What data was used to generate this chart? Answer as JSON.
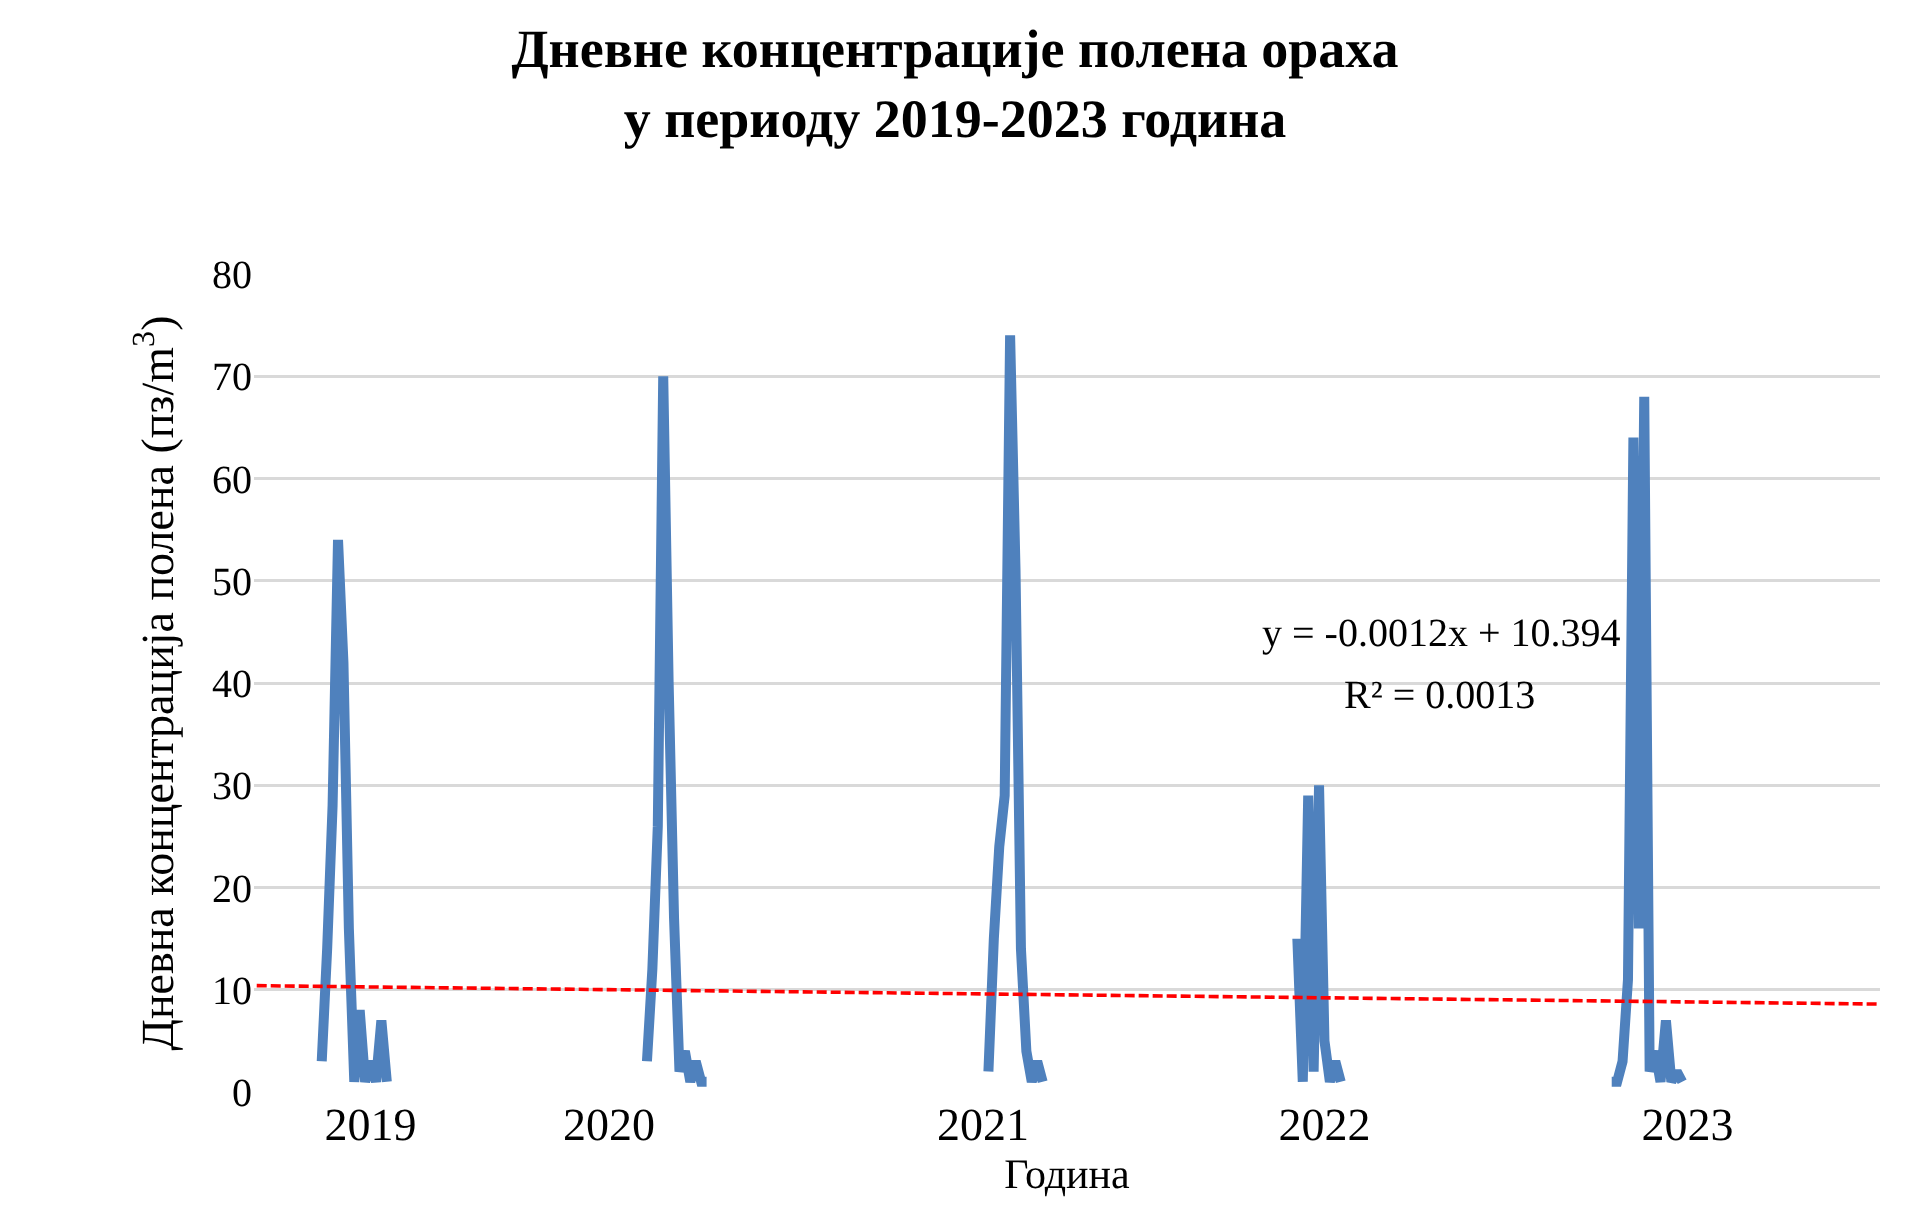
{
  "chart_data": {
    "type": "line",
    "title": "Дневне концентрације полена ораха\nу периоду 2019-2023 година",
    "xlabel": "Година",
    "ylabel": "Дневна концентрација полена (пз/m$^{3}$)",
    "categories": [
      null,
      null,
      null,
      null,
      null,
      null,
      null,
      null,
      null,
      null,
      null,
      null,
      null,
      null,
      null,
      null,
      null,
      null,
      null,
      null,
      null,
      "2019",
      null,
      null,
      null,
      null,
      null,
      null,
      null,
      null,
      null,
      null,
      null,
      null,
      null,
      null,
      null,
      null,
      null,
      null,
      null,
      null,
      null,
      null,
      null,
      null,
      null,
      null,
      null,
      null,
      null,
      null,
      null,
      null,
      null,
      null,
      null,
      null,
      null,
      null,
      null,
      null,
      null,
      null,
      null,
      "2020",
      null,
      null,
      null,
      null,
      null,
      null,
      null,
      null,
      null,
      null,
      null,
      null,
      null,
      null,
      null,
      null,
      null,
      null,
      null,
      null,
      null,
      null,
      null,
      null,
      null,
      null,
      null,
      null,
      null,
      null,
      null,
      null,
      null,
      null,
      null,
      null,
      null,
      null,
      null,
      null,
      null,
      null,
      null,
      null,
      null,
      null,
      null,
      null,
      null,
      null,
      null,
      null,
      null,
      null,
      null,
      null,
      null,
      null,
      null,
      null,
      null,
      null,
      null,
      null,
      null,
      null,
      null,
      null,
      "2021",
      null,
      null,
      null,
      null,
      null,
      null,
      null,
      null,
      null,
      null,
      null,
      null,
      null,
      null,
      null,
      null,
      null,
      null,
      null,
      null,
      null,
      null,
      null,
      null,
      null,
      null,
      null,
      null,
      null,
      null,
      null,
      null,
      null,
      null,
      null,
      null,
      null,
      null,
      null,
      null,
      null,
      null,
      null,
      null,
      null,
      null,
      null,
      null,
      null,
      null,
      null,
      null,
      null,
      null,
      null,
      null,
      null,
      null,
      null,
      null,
      null,
      null,
      "2022",
      null,
      null,
      null,
      null,
      null,
      null,
      null,
      null,
      null,
      null,
      null,
      null,
      null,
      null,
      null,
      null,
      null,
      null,
      null,
      null,
      null,
      null,
      null,
      null,
      null,
      null,
      null,
      null,
      null,
      null,
      null,
      null,
      null,
      null,
      null,
      null,
      null,
      null,
      null,
      null,
      null,
      null,
      null,
      null,
      null,
      null,
      null,
      null,
      null,
      null,
      null,
      null,
      null,
      null,
      null,
      null,
      null,
      null,
      null,
      null,
      null,
      null,
      null,
      null,
      null,
      null,
      "2023",
      null,
      null,
      null,
      null,
      null,
      null,
      null,
      null,
      null,
      null,
      null,
      null,
      null,
      null,
      null,
      null,
      null,
      null,
      null,
      null,
      null,
      null,
      null,
      null,
      null,
      null,
      null,
      null,
      null,
      null,
      null,
      null,
      null,
      null,
      null
    ],
    "series": [
      {
        "color": "#4f81bd",
        "line_style": "solid",
        "values": [
          null,
          null,
          null,
          null,
          null,
          null,
          null,
          null,
          null,
          null,
          null,
          null,
          3,
          14,
          28,
          54,
          42,
          16,
          1,
          8,
          1,
          3,
          1,
          7,
          1,
          null,
          null,
          null,
          null,
          null,
          null,
          null,
          null,
          null,
          null,
          null,
          null,
          null,
          null,
          null,
          null,
          null,
          null,
          null,
          null,
          null,
          null,
          null,
          null,
          null,
          null,
          null,
          null,
          null,
          null,
          null,
          null,
          null,
          null,
          null,
          null,
          null,
          null,
          null,
          null,
          null,
          null,
          null,
          null,
          null,
          null,
          null,
          3,
          12,
          26,
          70,
          40,
          17,
          2,
          4,
          1,
          3,
          1,
          1,
          null,
          null,
          null,
          null,
          null,
          null,
          null,
          null,
          null,
          null,
          null,
          null,
          null,
          null,
          null,
          null,
          null,
          null,
          null,
          null,
          null,
          null,
          null,
          null,
          null,
          null,
          null,
          null,
          null,
          null,
          null,
          null,
          null,
          null,
          null,
          null,
          null,
          null,
          null,
          null,
          null,
          null,
          null,
          null,
          null,
          null,
          null,
          null,
          null,
          null,
          null,
          2,
          15,
          24,
          29,
          74,
          51,
          14,
          4,
          1,
          3,
          1,
          null,
          null,
          null,
          null,
          null,
          null,
          null,
          null,
          null,
          null,
          null,
          null,
          null,
          null,
          null,
          null,
          null,
          null,
          null,
          null,
          null,
          null,
          null,
          null,
          null,
          null,
          null,
          null,
          null,
          null,
          null,
          null,
          null,
          null,
          null,
          null,
          null,
          null,
          null,
          null,
          null,
          null,
          null,
          null,
          null,
          null,
          15,
          1,
          29,
          2,
          30,
          5,
          1,
          3,
          1,
          null,
          null,
          null,
          null,
          null,
          null,
          null,
          null,
          null,
          null,
          null,
          null,
          null,
          null,
          null,
          null,
          null,
          null,
          null,
          null,
          null,
          null,
          null,
          null,
          null,
          null,
          null,
          null,
          null,
          null,
          null,
          null,
          null,
          null,
          null,
          null,
          null,
          null,
          null,
          null,
          null,
          null,
          null,
          null,
          null,
          null,
          null,
          null,
          null,
          1,
          1,
          3,
          11,
          64,
          16,
          68,
          2,
          4,
          1,
          7,
          1,
          2,
          1,
          null,
          null,
          null,
          null,
          null,
          null,
          null,
          null,
          null,
          null,
          null,
          null,
          null,
          null,
          null,
          null,
          null,
          null,
          null,
          null,
          null,
          null,
          null,
          null,
          null,
          null,
          null,
          null,
          null,
          null,
          null,
          null,
          null,
          null,
          null,
          null
        ]
      },
      {
        "type": "line",
        "color": "#ff0000",
        "line_style": "dashed",
        "values": [
          10.4,
          null,
          null,
          null,
          null,
          null,
          null,
          null,
          null,
          null,
          null,
          null,
          null,
          null,
          null,
          null,
          null,
          null,
          null,
          null,
          null,
          null,
          null,
          null,
          null,
          null,
          null,
          null,
          null,
          null,
          null,
          null,
          null,
          null,
          null,
          null,
          null,
          null,
          null,
          null,
          null,
          null,
          null,
          null,
          null,
          null,
          null,
          null,
          null,
          null,
          null,
          null,
          null,
          null,
          null,
          null,
          null,
          null,
          null,
          null,
          null,
          null,
          null,
          null,
          null,
          null,
          null,
          null,
          null,
          null,
          null,
          null,
          null,
          null,
          null,
          null,
          null,
          null,
          null,
          null,
          null,
          null,
          null,
          null,
          null,
          null,
          null,
          null,
          null,
          null,
          null,
          null,
          null,
          null,
          null,
          null,
          null,
          null,
          null,
          null,
          null,
          null,
          null,
          null,
          null,
          null,
          null,
          null,
          null,
          null,
          null,
          null,
          null,
          null,
          null,
          null,
          null,
          null,
          null,
          null,
          null,
          null,
          null,
          null,
          null,
          null,
          null,
          null,
          null,
          null,
          null,
          null,
          null,
          null,
          null,
          null,
          null,
          null,
          null,
          null,
          null,
          null,
          null,
          null,
          null,
          null,
          null,
          null,
          null,
          null,
          null,
          null,
          null,
          null,
          null,
          null,
          null,
          null,
          null,
          null,
          null,
          null,
          null,
          null,
          null,
          null,
          null,
          null,
          null,
          null,
          null,
          null,
          null,
          null,
          null,
          null,
          null,
          null,
          null,
          null,
          null,
          null,
          null,
          null,
          null,
          null,
          null,
          null,
          null,
          null,
          null,
          null,
          null,
          null,
          null,
          null,
          null,
          null,
          null,
          null,
          null,
          null,
          null,
          null,
          null,
          null,
          null,
          null,
          null,
          null,
          null,
          null,
          null,
          null,
          null,
          null,
          null,
          null,
          null,
          null,
          null,
          null,
          null,
          null,
          null,
          null,
          null,
          null,
          null,
          null,
          null,
          null,
          null,
          null,
          null,
          null,
          null,
          null,
          null,
          null,
          null,
          null,
          null,
          null,
          null,
          null,
          null,
          null,
          null,
          null,
          null,
          null,
          null,
          null,
          null,
          null,
          null,
          null,
          null,
          null,
          null,
          null,
          null,
          null,
          null,
          null,
          null,
          null,
          null,
          null,
          null,
          null,
          null,
          null,
          null,
          null,
          null,
          null,
          null,
          null,
          null,
          null,
          null,
          null,
          null,
          null,
          null,
          null,
          null,
          null,
          null,
          null,
          null,
          null,
          null,
          null,
          null,
          null,
          null,
          8.6
        ]
      }
    ],
    "ylim": [
      0,
      80
    ],
    "yticks": [
      0,
      10,
      20,
      30,
      40,
      50,
      60,
      70,
      80
    ],
    "grid": "y",
    "annotations": [
      "y = -0.0012x + 10.394",
      "R² = 0.0013"
    ]
  }
}
